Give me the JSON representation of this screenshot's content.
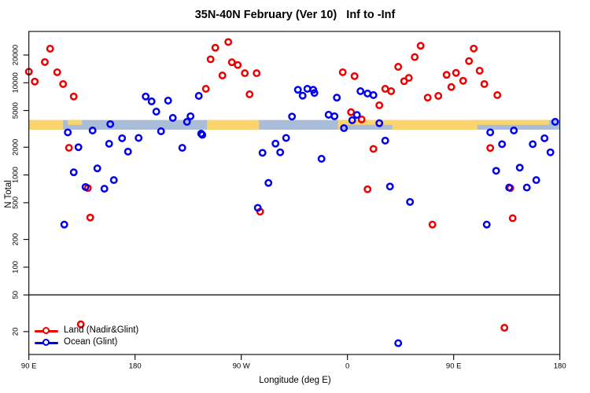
{
  "title": "35N-40N February (Ver 10)   Inf to -Inf",
  "legend": {
    "items": [
      {
        "label": "Land (Nadir&Glint)",
        "color": "#ee0000"
      },
      {
        "label": "Ocean (Glint)",
        "color": "#0000ee"
      }
    ]
  },
  "chart_data": {
    "type": "scatter",
    "title": "35N-40N February (Ver 10)   Inf to -Inf",
    "xlabel": "Longitude (deg E)",
    "ylabel": "N Total",
    "y_scale": "log10",
    "grid": "off",
    "legend_position": "bottom-left",
    "x_axis_note": "axis spans 450 deg of longitude: 90E to 180 to 90W to 0 to 90E to 180; x stored as deg from left edge",
    "x_ticks": [
      {
        "deg": 0,
        "label": "90 E"
      },
      {
        "deg": 90,
        "label": "180"
      },
      {
        "deg": 180,
        "label": "90 W"
      },
      {
        "deg": 270,
        "label": "0"
      },
      {
        "deg": 360,
        "label": "90 E"
      },
      {
        "deg": 450,
        "label": "180"
      }
    ],
    "y_ticks": [
      {
        "v": 20000,
        "label": "20000"
      },
      {
        "v": 10000,
        "label": "10000"
      },
      {
        "v": 5000,
        "label": "5000"
      },
      {
        "v": 2000,
        "label": "2000"
      },
      {
        "v": 1000,
        "label": "1000"
      },
      {
        "v": 500,
        "label": "500"
      },
      {
        "v": 200,
        "label": "200"
      },
      {
        "v": 100,
        "label": "100"
      },
      {
        "v": 50,
        "label": "50"
      },
      {
        "v": 20,
        "label": "20"
      }
    ],
    "reference_line_y": 50,
    "band": {
      "y_range": [
        3100,
        3950
      ],
      "land_color": "#fbd46d",
      "ocean_color": "#a9bdd9",
      "segments": [
        {
          "range": [
            0,
            29
          ],
          "cover": "land",
          "part": "full"
        },
        {
          "range": [
            33,
            45
          ],
          "cover": "land",
          "part": "top"
        },
        {
          "range": [
            151,
            195
          ],
          "cover": "land",
          "part": "full"
        },
        {
          "range": [
            262,
            380
          ],
          "cover": "land",
          "part": "full"
        },
        {
          "range": [
            265,
            308
          ],
          "cover": "ocean",
          "part": "bottom"
        },
        {
          "range": [
            380,
            441
          ],
          "cover": "land",
          "part": "top"
        }
      ]
    },
    "series": [
      {
        "name": "Land (Nadir&Glint)",
        "color": "#ee0000",
        "points": [
          [
            0,
            13200
          ],
          [
            5,
            10300
          ],
          [
            13.5,
            16800
          ],
          [
            18,
            23400
          ],
          [
            24,
            13000
          ],
          [
            29,
            9700
          ],
          [
            38,
            7100
          ],
          [
            34,
            1970
          ],
          [
            50,
            720
          ],
          [
            52,
            345
          ],
          [
            44,
            24
          ],
          [
            150,
            8600
          ],
          [
            154,
            18000
          ],
          [
            158,
            24000
          ],
          [
            169,
            27700
          ],
          [
            172,
            16700
          ],
          [
            177,
            15600
          ],
          [
            183,
            12700
          ],
          [
            193,
            12700
          ],
          [
            164,
            12000
          ],
          [
            187,
            7500
          ],
          [
            196,
            400
          ],
          [
            266,
            13000
          ],
          [
            276,
            11800
          ],
          [
            273,
            4800
          ],
          [
            282,
            4000
          ],
          [
            287,
            700
          ],
          [
            292,
            1920
          ],
          [
            297,
            5700
          ],
          [
            302,
            8600
          ],
          [
            307,
            8100
          ],
          [
            313,
            14900
          ],
          [
            318,
            10400
          ],
          [
            322,
            11300
          ],
          [
            327,
            19000
          ],
          [
            332,
            25200
          ],
          [
            338,
            6900
          ],
          [
            342,
            290
          ],
          [
            347,
            7200
          ],
          [
            354,
            12200
          ],
          [
            358,
            9000
          ],
          [
            362,
            12800
          ],
          [
            368,
            10500
          ],
          [
            373,
            17200
          ],
          [
            377,
            23500
          ],
          [
            382,
            13500
          ],
          [
            386,
            9700
          ],
          [
            391,
            1960
          ],
          [
            397,
            7350
          ],
          [
            408,
            720
          ],
          [
            410,
            340
          ],
          [
            403,
            22
          ]
        ]
      },
      {
        "name": "Ocean (Glint)",
        "color": "#0000ee",
        "points": [
          [
            33,
            2900
          ],
          [
            54,
            3040
          ],
          [
            69,
            3560
          ],
          [
            42,
            2000
          ],
          [
            68,
            2180
          ],
          [
            79,
            2500
          ],
          [
            84,
            1790
          ],
          [
            93,
            2520
          ],
          [
            112,
            2980
          ],
          [
            130,
            1970
          ],
          [
            146,
            2810
          ],
          [
            38,
            1070
          ],
          [
            58,
            1180
          ],
          [
            72,
            880
          ],
          [
            48,
            740
          ],
          [
            64,
            710
          ],
          [
            30,
            290
          ],
          [
            144,
            7200
          ],
          [
            99,
            7100
          ],
          [
            104,
            6280
          ],
          [
            108,
            4870
          ],
          [
            118,
            6400
          ],
          [
            122,
            4160
          ],
          [
            134,
            3770
          ],
          [
            137,
            4330
          ],
          [
            147,
            2720
          ],
          [
            209,
            2190
          ],
          [
            218,
            2520
          ],
          [
            198,
            1740
          ],
          [
            213,
            1760
          ],
          [
            248,
            1500
          ],
          [
            203,
            820
          ],
          [
            194,
            440
          ],
          [
            223,
            4300
          ],
          [
            228,
            8400
          ],
          [
            232,
            7250
          ],
          [
            236,
            8600
          ],
          [
            241,
            8400
          ],
          [
            242,
            7750
          ],
          [
            261,
            6900
          ],
          [
            254,
            4500
          ],
          [
            259,
            4330
          ],
          [
            281,
            8100
          ],
          [
            287,
            7640
          ],
          [
            292,
            7350
          ],
          [
            278,
            4480
          ],
          [
            274,
            3920
          ],
          [
            267,
            3220
          ],
          [
            297,
            3650
          ],
          [
            302,
            2360
          ],
          [
            306,
            750
          ],
          [
            323,
            510
          ],
          [
            313,
            15
          ],
          [
            388,
            290
          ],
          [
            391,
            2900
          ],
          [
            401,
            2160
          ],
          [
            411,
            3040
          ],
          [
            427,
            2160
          ],
          [
            437,
            2500
          ],
          [
            442,
            1760
          ],
          [
            396,
            1110
          ],
          [
            416,
            1200
          ],
          [
            407,
            730
          ],
          [
            422,
            730
          ],
          [
            430,
            880
          ],
          [
            446,
            3770
          ]
        ]
      }
    ]
  }
}
